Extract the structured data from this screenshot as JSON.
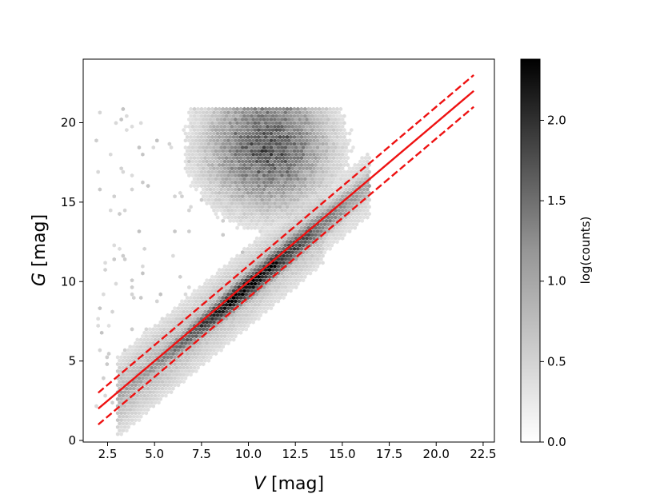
{
  "chart_data": {
    "type": "heatmap",
    "subtype": "hexbin",
    "title": "",
    "xlabel": {
      "symbol": "V",
      "unit": " [mag]"
    },
    "ylabel": {
      "symbol": "G",
      "unit": " [mag]"
    },
    "xlim": [
      1.2,
      23.1
    ],
    "ylim": [
      -0.1,
      24.0
    ],
    "xticks": [
      2.5,
      5.0,
      7.5,
      10.0,
      12.5,
      15.0,
      17.5,
      20.0,
      22.5
    ],
    "xtick_labels": [
      "2.5",
      "5.0",
      "7.5",
      "10.0",
      "12.5",
      "15.0",
      "17.5",
      "20.0",
      "22.5"
    ],
    "yticks": [
      0,
      5,
      10,
      15,
      20
    ],
    "ytick_labels": [
      "0",
      "5",
      "10",
      "15",
      "20"
    ],
    "grid": false,
    "colormap": "Greys",
    "colorbar": {
      "label": "log(counts)",
      "range": [
        0.0,
        2.38
      ],
      "ticks": [
        0.0,
        0.5,
        1.0,
        1.5,
        2.0
      ],
      "tick_labels": [
        "0.0",
        "0.5",
        "1.0",
        "1.5",
        "2.0"
      ]
    },
    "density_components": [
      {
        "kind": "sequence",
        "x_range": [
          3.0,
          16.5
        ],
        "relation": "G = V - 0.3",
        "peak_log_counts": 2.35,
        "peak_at_v": 10.0
      },
      {
        "kind": "cloud",
        "center": [
          11.0,
          18.5
        ],
        "extent_v": [
          8.0,
          15.0
        ],
        "extent_g": [
          14.0,
          20.9
        ],
        "peak_log_counts": 1.4
      }
    ],
    "lines": [
      {
        "style": "solid",
        "color": "#ee1111",
        "x": [
          2.0,
          22.0
        ],
        "y": [
          2.0,
          22.0
        ]
      },
      {
        "style": "dashed",
        "color": "#ee1111",
        "x": [
          2.0,
          22.0
        ],
        "y": [
          3.0,
          23.0
        ]
      },
      {
        "style": "dashed",
        "color": "#ee1111",
        "x": [
          2.0,
          22.0
        ],
        "y": [
          1.0,
          21.0
        ]
      }
    ]
  }
}
